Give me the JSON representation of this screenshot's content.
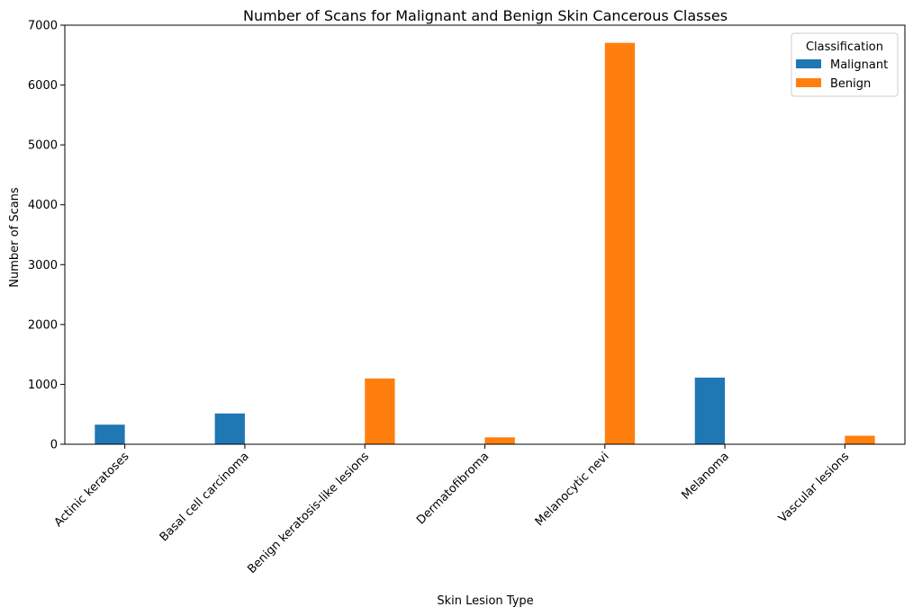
{
  "chart_data": {
    "type": "bar",
    "title": "Number of Scans for Malignant and Benign Skin Cancerous Classes",
    "xlabel": "Skin Lesion Type",
    "ylabel": "Number of Scans",
    "categories": [
      "Actinic keratoses",
      "Basal cell carcinoma",
      "Benign keratosis-like lesions",
      "Dermatofibroma",
      "Melanocytic nevi",
      "Melanoma",
      "Vascular lesions"
    ],
    "series": [
      {
        "name": "Malignant",
        "color": "#1f77b4",
        "values": [
          327,
          514,
          0,
          0,
          0,
          1113,
          0
        ]
      },
      {
        "name": "Benign",
        "color": "#ff7f0e",
        "values": [
          0,
          0,
          1099,
          115,
          6705,
          0,
          142
        ]
      }
    ],
    "ylim": [
      0,
      7000
    ],
    "yticks": [
      0,
      1000,
      2000,
      3000,
      4000,
      5000,
      6000,
      7000
    ],
    "legend": {
      "title": "Classification",
      "position": "top-right"
    },
    "grid": false
  }
}
